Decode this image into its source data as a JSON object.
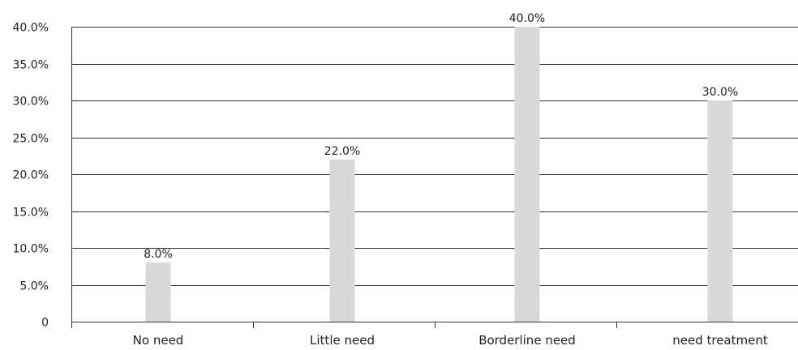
{
  "chart_data": {
    "type": "bar",
    "categories": [
      "No need",
      "Little need",
      "Borderline need",
      "need treatment"
    ],
    "values": [
      8.0,
      22.0,
      40.0,
      30.0
    ],
    "data_labels": [
      "8.0%",
      "22.0%",
      "40.0%",
      "30.0%"
    ],
    "y_tick_values": [
      0,
      5,
      10,
      15,
      20,
      25,
      30,
      35,
      40
    ],
    "y_tick_labels": [
      "0",
      "5.0%",
      "10.0%",
      "15.0%",
      "20.0%",
      "25.0%",
      "30.0%",
      "35.0%",
      "40.0%"
    ],
    "ylim": [
      0,
      40
    ],
    "grid": true,
    "legend": "none",
    "title": "",
    "xlabel": "",
    "ylabel": "",
    "colors": {
      "bar": "#d9d9d9",
      "grid": "#333333",
      "axis": "#333333",
      "text": "#222222"
    }
  }
}
